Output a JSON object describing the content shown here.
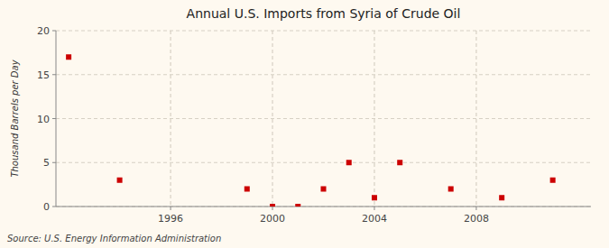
{
  "chart_data": {
    "type": "scatter",
    "title": "Annual U.S. Imports from Syria of Crude Oil",
    "y_label": "Thousand Barrels per Day",
    "source": "Source: U.S. Energy Information Administration",
    "x": [
      1992,
      1994,
      1999,
      2000,
      2001,
      2002,
      2003,
      2004,
      2005,
      2007,
      2009,
      2011
    ],
    "values": [
      17,
      3,
      2,
      0,
      0,
      2,
      5,
      1,
      5,
      2,
      1,
      3
    ],
    "color": "#cc0000",
    "marker": "square",
    "xlim": [
      1991.5,
      2012.5
    ],
    "ylim": [
      0,
      20
    ],
    "xticks": [
      1996,
      2000,
      2004,
      2008
    ],
    "yticks": [
      0,
      5,
      10,
      15,
      20
    ],
    "grid": true
  }
}
